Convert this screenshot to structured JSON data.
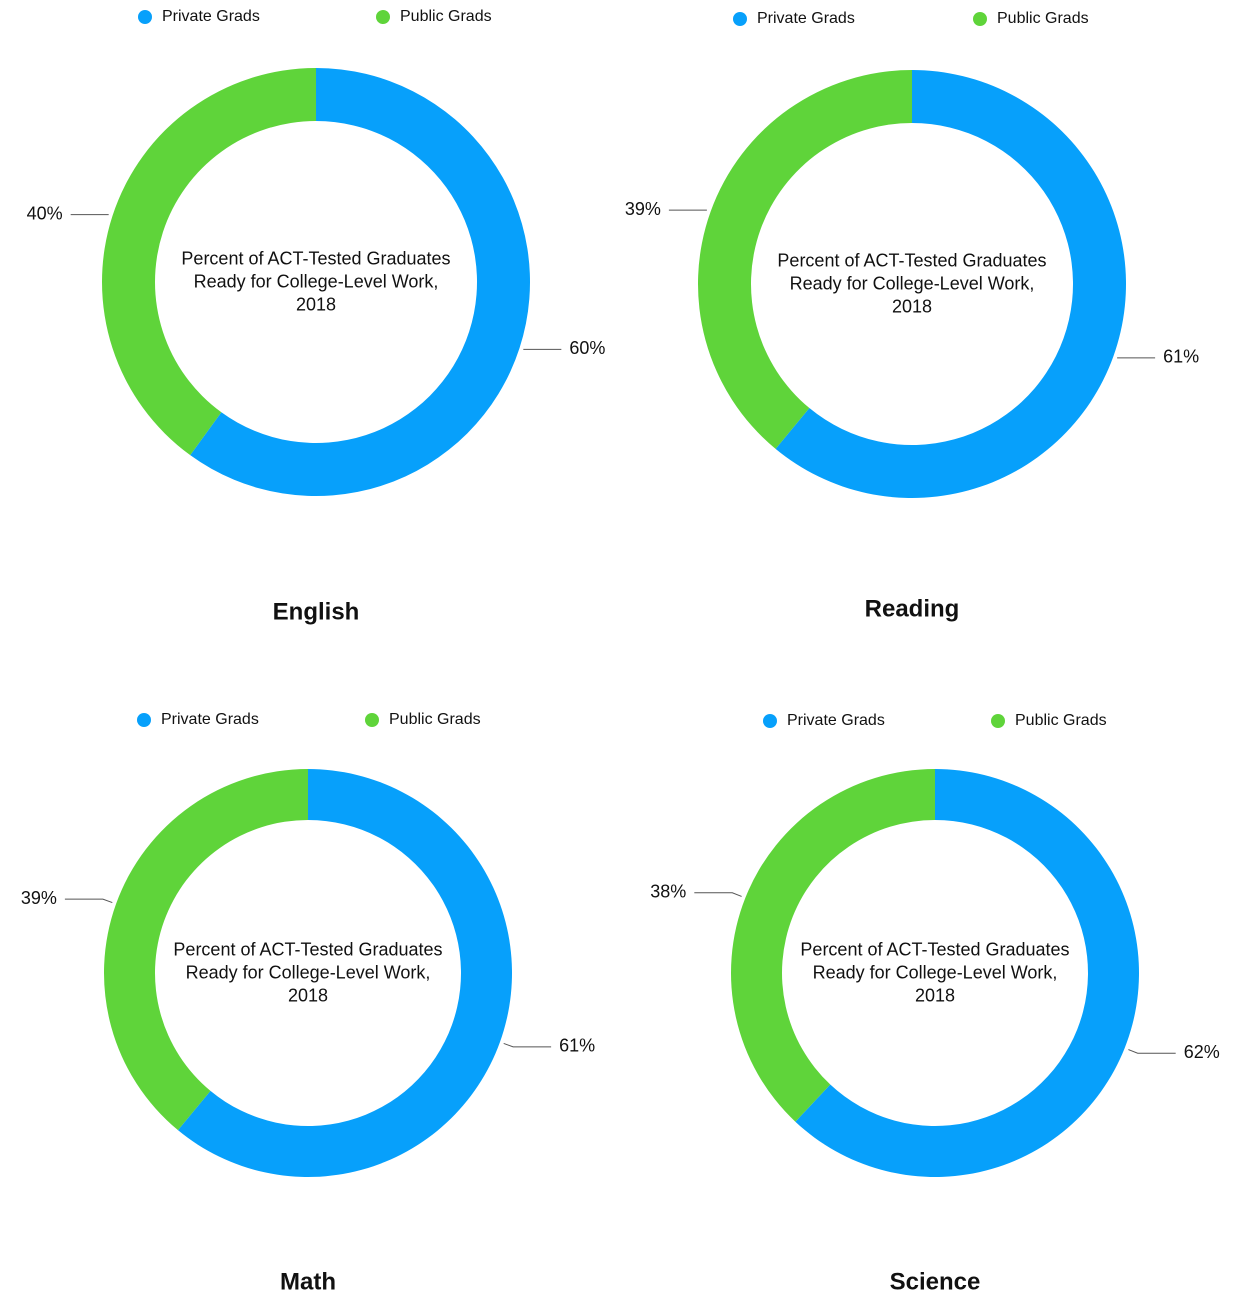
{
  "chart_data": [
    {
      "type": "pie",
      "title": "English",
      "center_text": "Percent of ACT-Tested Graduates Ready for College-Level Work, 2018",
      "categories": [
        "Private Grads",
        "Public Grads"
      ],
      "values": [
        60,
        40
      ],
      "value_labels": [
        "60%",
        "40%"
      ],
      "colors": [
        "#07a0fb",
        "#5fd43a"
      ]
    },
    {
      "type": "pie",
      "title": "Reading",
      "center_text": "Percent of ACT-Tested Graduates Ready for College-Level Work, 2018",
      "categories": [
        "Private Grads",
        "Public Grads"
      ],
      "values": [
        61,
        39
      ],
      "value_labels": [
        "61%",
        "39%"
      ],
      "colors": [
        "#07a0fb",
        "#5fd43a"
      ]
    },
    {
      "type": "pie",
      "title": "Math",
      "center_text": "Percent of ACT-Tested Graduates Ready for College-Level Work, 2018",
      "categories": [
        "Private Grads",
        "Public Grads"
      ],
      "values": [
        61,
        39
      ],
      "value_labels": [
        "61%",
        "39%"
      ],
      "colors": [
        "#07a0fb",
        "#5fd43a"
      ]
    },
    {
      "type": "pie",
      "title": "Science",
      "center_text": "Percent of ACT-Tested Graduates Ready for College-Level Work, 2018",
      "categories": [
        "Private Grads",
        "Public Grads"
      ],
      "values": [
        62,
        38
      ],
      "value_labels": [
        "62%",
        "38%"
      ],
      "colors": [
        "#07a0fb",
        "#5fd43a"
      ]
    }
  ]
}
